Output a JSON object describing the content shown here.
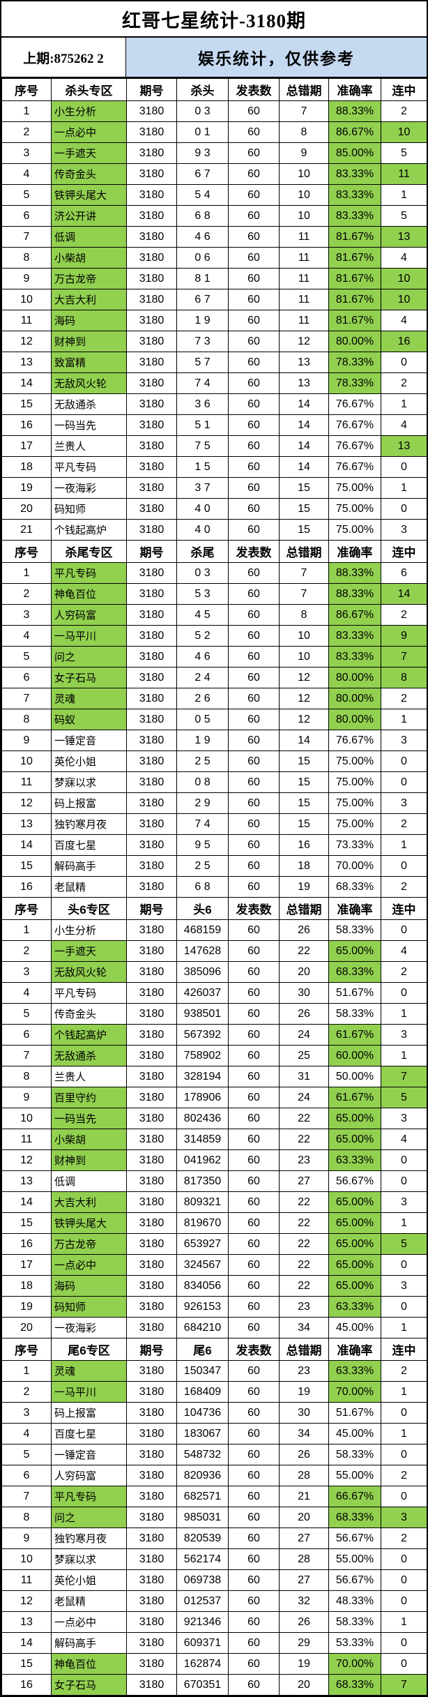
{
  "title": "红哥七星统计-3180期",
  "subheader": {
    "last_issue": "上期:875262 2",
    "notice": "娱乐统计，仅供参考"
  },
  "colors": {
    "highlight_green": "#92d050",
    "notice_blue": "#c5d9f1",
    "border": "#000000"
  },
  "row_fields": [
    "序号",
    "专区名称",
    "期号",
    "号码值",
    "发表数",
    "总错期",
    "准确率",
    "连中",
    "行高亮(名称+准确率)",
    "连中高亮"
  ],
  "sections": [
    {
      "zone": "杀头专区",
      "value_label": "杀头",
      "headers": [
        "序号",
        "杀头专区",
        "期号",
        "杀头",
        "发表数",
        "总错期",
        "准确率",
        "连中"
      ],
      "rows": [
        [
          "1",
          "小生分析",
          "3180",
          "0 3",
          "60",
          "7",
          "88.33%",
          "2",
          true,
          false
        ],
        [
          "2",
          "一点必中",
          "3180",
          "0 1",
          "60",
          "8",
          "86.67%",
          "10",
          true,
          true
        ],
        [
          "3",
          "一手遮天",
          "3180",
          "9 3",
          "60",
          "9",
          "85.00%",
          "5",
          true,
          false
        ],
        [
          "4",
          "传奇金头",
          "3180",
          "6 7",
          "60",
          "10",
          "83.33%",
          "11",
          true,
          true
        ],
        [
          "5",
          "铁钾头尾大",
          "3180",
          "5 4",
          "60",
          "10",
          "83.33%",
          "1",
          true,
          false
        ],
        [
          "6",
          "济公开讲",
          "3180",
          "6 8",
          "60",
          "10",
          "83.33%",
          "5",
          true,
          false
        ],
        [
          "7",
          "低调",
          "3180",
          "4 6",
          "60",
          "11",
          "81.67%",
          "13",
          true,
          true
        ],
        [
          "8",
          "小柴胡",
          "3180",
          "0 6",
          "60",
          "11",
          "81.67%",
          "4",
          true,
          false
        ],
        [
          "9",
          "万古龙帝",
          "3180",
          "8 1",
          "60",
          "11",
          "81.67%",
          "10",
          true,
          true
        ],
        [
          "10",
          "大吉大利",
          "3180",
          "6 7",
          "60",
          "11",
          "81.67%",
          "10",
          true,
          true
        ],
        [
          "11",
          "海码",
          "3180",
          "1 9",
          "60",
          "11",
          "81.67%",
          "4",
          true,
          false
        ],
        [
          "12",
          "财神到",
          "3180",
          "7 3",
          "60",
          "12",
          "80.00%",
          "16",
          true,
          true
        ],
        [
          "13",
          "致富精",
          "3180",
          "5 7",
          "60",
          "13",
          "78.33%",
          "0",
          true,
          false
        ],
        [
          "14",
          "无敌风火轮",
          "3180",
          "7 4",
          "60",
          "13",
          "78.33%",
          "2",
          true,
          false
        ],
        [
          "15",
          "无敌通杀",
          "3180",
          "3 6",
          "60",
          "14",
          "76.67%",
          "1",
          false,
          false
        ],
        [
          "16",
          "一码当先",
          "3180",
          "5 1",
          "60",
          "14",
          "76.67%",
          "4",
          false,
          false
        ],
        [
          "17",
          "兰贵人",
          "3180",
          "7 5",
          "60",
          "14",
          "76.67%",
          "13",
          false,
          true
        ],
        [
          "18",
          "平凡专码",
          "3180",
          "1 5",
          "60",
          "14",
          "76.67%",
          "0",
          false,
          false
        ],
        [
          "19",
          "一夜海彩",
          "3180",
          "3 7",
          "60",
          "15",
          "75.00%",
          "1",
          false,
          false
        ],
        [
          "20",
          "码知师",
          "3180",
          "4 0",
          "60",
          "15",
          "75.00%",
          "0",
          false,
          false
        ],
        [
          "21",
          "个钱起高炉",
          "3180",
          "4 0",
          "60",
          "15",
          "75.00%",
          "3",
          false,
          false
        ]
      ]
    },
    {
      "zone": "杀尾专区",
      "value_label": "杀尾",
      "headers": [
        "序号",
        "杀尾专区",
        "期号",
        "杀尾",
        "发表数",
        "总错期",
        "准确率",
        "连中"
      ],
      "rows": [
        [
          "1",
          "平凡专码",
          "3180",
          "0 3",
          "60",
          "7",
          "88.33%",
          "6",
          true,
          false
        ],
        [
          "2",
          "神龟百位",
          "3180",
          "5 3",
          "60",
          "7",
          "88.33%",
          "14",
          true,
          true
        ],
        [
          "3",
          "人穷码富",
          "3180",
          "4 5",
          "60",
          "8",
          "86.67%",
          "2",
          true,
          false
        ],
        [
          "4",
          "一马平川",
          "3180",
          "5 2",
          "60",
          "10",
          "83.33%",
          "9",
          true,
          true
        ],
        [
          "5",
          "问之",
          "3180",
          "4 6",
          "60",
          "10",
          "83.33%",
          "7",
          true,
          true
        ],
        [
          "6",
          "女子石马",
          "3180",
          "2 4",
          "60",
          "12",
          "80.00%",
          "8",
          true,
          true
        ],
        [
          "7",
          "灵魂",
          "3180",
          "2 6",
          "60",
          "12",
          "80.00%",
          "2",
          true,
          false
        ],
        [
          "8",
          "码蚁",
          "3180",
          "0 5",
          "60",
          "12",
          "80.00%",
          "1",
          true,
          false
        ],
        [
          "9",
          "一锤定音",
          "3180",
          "1 9",
          "60",
          "14",
          "76.67%",
          "3",
          false,
          false
        ],
        [
          "10",
          "英伦小姐",
          "3180",
          "2 5",
          "60",
          "15",
          "75.00%",
          "0",
          false,
          false
        ],
        [
          "11",
          "梦寐以求",
          "3180",
          "0 8",
          "60",
          "15",
          "75.00%",
          "0",
          false,
          false
        ],
        [
          "12",
          "码上报富",
          "3180",
          "2 9",
          "60",
          "15",
          "75.00%",
          "3",
          false,
          false
        ],
        [
          "13",
          "独钓寒月夜",
          "3180",
          "7 4",
          "60",
          "15",
          "75.00%",
          "2",
          false,
          false
        ],
        [
          "14",
          "百度七星",
          "3180",
          "9 5",
          "60",
          "16",
          "73.33%",
          "1",
          false,
          false
        ],
        [
          "15",
          "解码高手",
          "3180",
          "2 5",
          "60",
          "18",
          "70.00%",
          "0",
          false,
          false
        ],
        [
          "16",
          "老鼠精",
          "3180",
          "6 8",
          "60",
          "19",
          "68.33%",
          "2",
          false,
          false
        ]
      ]
    },
    {
      "zone": "头6专区",
      "value_label": "头6",
      "headers": [
        "序号",
        "头6专区",
        "期号",
        "头6",
        "发表数",
        "总错期",
        "准确率",
        "连中"
      ],
      "rows": [
        [
          "1",
          "小生分析",
          "3180",
          "468159",
          "60",
          "26",
          "58.33%",
          "0",
          false,
          false
        ],
        [
          "2",
          "一手遮天",
          "3180",
          "147628",
          "60",
          "22",
          "65.00%",
          "4",
          true,
          false
        ],
        [
          "3",
          "无敌风火轮",
          "3180",
          "385096",
          "60",
          "20",
          "68.33%",
          "2",
          true,
          false
        ],
        [
          "4",
          "平凡专码",
          "3180",
          "426037",
          "60",
          "30",
          "51.67%",
          "0",
          false,
          false
        ],
        [
          "5",
          "传奇金头",
          "3180",
          "938501",
          "60",
          "26",
          "58.33%",
          "1",
          false,
          false
        ],
        [
          "6",
          "个钱起高炉",
          "3180",
          "567392",
          "60",
          "24",
          "61.67%",
          "3",
          true,
          false
        ],
        [
          "7",
          "无敌通杀",
          "3180",
          "758902",
          "60",
          "25",
          "60.00%",
          "1",
          true,
          false
        ],
        [
          "8",
          "兰贵人",
          "3180",
          "328194",
          "60",
          "31",
          "50.00%",
          "7",
          false,
          true
        ],
        [
          "9",
          "百里守约",
          "3180",
          "178906",
          "60",
          "24",
          "61.67%",
          "5",
          true,
          true
        ],
        [
          "10",
          "一码当先",
          "3180",
          "802436",
          "60",
          "22",
          "65.00%",
          "3",
          true,
          false
        ],
        [
          "11",
          "小柴胡",
          "3180",
          "314859",
          "60",
          "22",
          "65.00%",
          "4",
          true,
          false
        ],
        [
          "12",
          "财神到",
          "3180",
          "041962",
          "60",
          "23",
          "63.33%",
          "0",
          true,
          false
        ],
        [
          "13",
          "低调",
          "3180",
          "817350",
          "60",
          "27",
          "56.67%",
          "0",
          false,
          false
        ],
        [
          "14",
          "大吉大利",
          "3180",
          "809321",
          "60",
          "22",
          "65.00%",
          "3",
          true,
          false
        ],
        [
          "15",
          "铁钾头尾大",
          "3180",
          "819670",
          "60",
          "22",
          "65.00%",
          "1",
          true,
          false
        ],
        [
          "16",
          "万古龙帝",
          "3180",
          "653927",
          "60",
          "22",
          "65.00%",
          "5",
          true,
          true
        ],
        [
          "17",
          "一点必中",
          "3180",
          "324567",
          "60",
          "22",
          "65.00%",
          "0",
          true,
          false
        ],
        [
          "18",
          "海码",
          "3180",
          "834056",
          "60",
          "22",
          "65.00%",
          "3",
          true,
          false
        ],
        [
          "19",
          "码知师",
          "3180",
          "926153",
          "60",
          "23",
          "63.33%",
          "0",
          true,
          false
        ],
        [
          "20",
          "一夜海彩",
          "3180",
          "684210",
          "60",
          "34",
          "45.00%",
          "1",
          false,
          false
        ]
      ]
    },
    {
      "zone": "尾6专区",
      "value_label": "尾6",
      "headers": [
        "序号",
        "尾6专区",
        "期号",
        "尾6",
        "发表数",
        "总错期",
        "准确率",
        "连中"
      ],
      "rows": [
        [
          "1",
          "灵魂",
          "3180",
          "150347",
          "60",
          "23",
          "63.33%",
          "2",
          true,
          false
        ],
        [
          "2",
          "一马平川",
          "3180",
          "168409",
          "60",
          "19",
          "70.00%",
          "1",
          true,
          false
        ],
        [
          "3",
          "码上报富",
          "3180",
          "104736",
          "60",
          "30",
          "51.67%",
          "0",
          false,
          false
        ],
        [
          "4",
          "百度七星",
          "3180",
          "183067",
          "60",
          "34",
          "45.00%",
          "1",
          false,
          false
        ],
        [
          "5",
          "一锤定音",
          "3180",
          "548732",
          "60",
          "26",
          "58.33%",
          "0",
          false,
          false
        ],
        [
          "6",
          "人穷码富",
          "3180",
          "820936",
          "60",
          "28",
          "55.00%",
          "2",
          false,
          false
        ],
        [
          "7",
          "平凡专码",
          "3180",
          "682571",
          "60",
          "21",
          "66.67%",
          "0",
          true,
          false
        ],
        [
          "8",
          "问之",
          "3180",
          "985031",
          "60",
          "20",
          "68.33%",
          "3",
          true,
          true
        ],
        [
          "9",
          "独钓寒月夜",
          "3180",
          "820539",
          "60",
          "27",
          "56.67%",
          "2",
          false,
          false
        ],
        [
          "10",
          "梦寐以求",
          "3180",
          "562174",
          "60",
          "28",
          "55.00%",
          "0",
          false,
          false
        ],
        [
          "11",
          "英伦小姐",
          "3180",
          "069738",
          "60",
          "27",
          "56.67%",
          "0",
          false,
          false
        ],
        [
          "12",
          "老鼠精",
          "3180",
          "012537",
          "60",
          "32",
          "48.33%",
          "0",
          false,
          false
        ],
        [
          "13",
          "一点必中",
          "3180",
          "921346",
          "60",
          "26",
          "58.33%",
          "1",
          false,
          false
        ],
        [
          "14",
          "解码高手",
          "3180",
          "609371",
          "60",
          "29",
          "53.33%",
          "0",
          false,
          false
        ],
        [
          "15",
          "神龟百位",
          "3180",
          "162874",
          "60",
          "19",
          "70.00%",
          "0",
          true,
          false
        ],
        [
          "16",
          "女子石马",
          "3180",
          "670351",
          "60",
          "20",
          "68.33%",
          "7",
          true,
          true
        ]
      ]
    }
  ]
}
